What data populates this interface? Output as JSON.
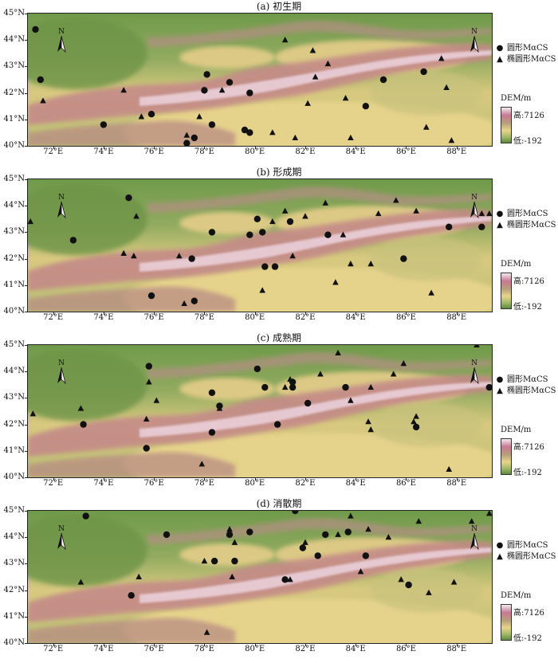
{
  "legend": {
    "circle_label": "圆形MαCS",
    "triangle_label": "椭圆形MαCS",
    "dem_title": "DEM/m",
    "dem_high": "高:7126",
    "dem_low": "低:-192",
    "north_label": "N"
  },
  "axes": {
    "x_ticks": [
      "72°E",
      "74°E",
      "76°E",
      "78°E",
      "80°E",
      "82°E",
      "84°E",
      "86°E",
      "88°E"
    ],
    "y_ticks": [
      "45°N",
      "44°N",
      "43°N",
      "42°N",
      "41°N",
      "40°N"
    ]
  },
  "map_extent": {
    "lon": [
      71.0,
      89.4
    ],
    "lat": [
      40.0,
      45.0
    ]
  },
  "colors": {
    "dem_high": "#f6e8f1",
    "dem_mid": "#c77a93",
    "dem_sand": "#e9d48a",
    "dem_low": "#5f8a3d",
    "marker": "#111111"
  },
  "panels": [
    {
      "title": "(a) 初生期",
      "circles": [
        [
          71.3,
          44.4
        ],
        [
          71.5,
          42.5
        ],
        [
          74.0,
          40.8
        ],
        [
          75.9,
          41.2
        ],
        [
          77.3,
          40.1
        ],
        [
          77.6,
          40.3
        ],
        [
          78.0,
          42.1
        ],
        [
          78.1,
          42.7
        ],
        [
          78.3,
          40.8
        ],
        [
          79.0,
          42.4
        ],
        [
          79.6,
          40.6
        ],
        [
          79.8,
          40.5
        ],
        [
          79.8,
          42.0
        ],
        [
          84.4,
          41.5
        ],
        [
          85.1,
          42.5
        ],
        [
          86.7,
          42.8
        ]
      ],
      "triangles": [
        [
          71.6,
          41.7
        ],
        [
          74.8,
          42.1
        ],
        [
          75.5,
          41.1
        ],
        [
          77.3,
          40.4
        ],
        [
          77.8,
          41.1
        ],
        [
          78.7,
          42.1
        ],
        [
          80.7,
          40.5
        ],
        [
          81.2,
          44.0
        ],
        [
          81.6,
          40.3
        ],
        [
          82.1,
          41.6
        ],
        [
          82.3,
          43.6
        ],
        [
          82.4,
          42.6
        ],
        [
          82.9,
          43.1
        ],
        [
          83.6,
          41.8
        ],
        [
          83.8,
          40.3
        ],
        [
          86.8,
          40.7
        ],
        [
          87.4,
          43.3
        ],
        [
          87.6,
          42.2
        ],
        [
          87.8,
          40.2
        ]
      ]
    },
    {
      "title": "(b) 形成期",
      "circles": [
        [
          72.8,
          42.7
        ],
        [
          75.0,
          44.3
        ],
        [
          75.9,
          40.6
        ],
        [
          77.5,
          42.0
        ],
        [
          77.6,
          40.4
        ],
        [
          78.3,
          43.0
        ],
        [
          79.8,
          42.9
        ],
        [
          80.1,
          43.5
        ],
        [
          80.3,
          43.0
        ],
        [
          80.4,
          41.7
        ],
        [
          80.8,
          41.7
        ],
        [
          81.4,
          43.4
        ],
        [
          82.9,
          42.9
        ],
        [
          85.9,
          42.0
        ],
        [
          87.7,
          43.2
        ],
        [
          89.0,
          43.2
        ]
      ],
      "triangles": [
        [
          71.1,
          43.4
        ],
        [
          74.8,
          42.2
        ],
        [
          75.2,
          42.1
        ],
        [
          75.3,
          43.6
        ],
        [
          77.0,
          42.1
        ],
        [
          77.2,
          40.3
        ],
        [
          80.3,
          40.8
        ],
        [
          80.7,
          43.4
        ],
        [
          81.2,
          43.8
        ],
        [
          81.5,
          42.1
        ],
        [
          82.0,
          43.6
        ],
        [
          82.8,
          44.1
        ],
        [
          83.2,
          41.1
        ],
        [
          83.5,
          42.9
        ],
        [
          83.8,
          41.8
        ],
        [
          84.6,
          41.8
        ],
        [
          84.9,
          43.7
        ],
        [
          85.6,
          44.2
        ],
        [
          86.4,
          43.8
        ],
        [
          87.0,
          40.7
        ],
        [
          89.0,
          43.7
        ],
        [
          89.3,
          43.7
        ]
      ]
    },
    {
      "title": "(c) 成熟期",
      "circles": [
        [
          73.2,
          42.0
        ],
        [
          75.7,
          41.1
        ],
        [
          75.8,
          44.2
        ],
        [
          78.3,
          41.7
        ],
        [
          78.3,
          43.2
        ],
        [
          78.6,
          42.7
        ],
        [
          80.1,
          44.1
        ],
        [
          80.4,
          43.4
        ],
        [
          80.9,
          42.0
        ],
        [
          81.5,
          43.4
        ],
        [
          81.5,
          43.6
        ],
        [
          82.1,
          42.8
        ],
        [
          83.6,
          43.4
        ],
        [
          86.4,
          41.9
        ],
        [
          89.3,
          43.4
        ]
      ],
      "triangles": [
        [
          71.2,
          42.4
        ],
        [
          73.1,
          42.6
        ],
        [
          75.7,
          42.2
        ],
        [
          75.8,
          43.6
        ],
        [
          76.1,
          42.9
        ],
        [
          77.9,
          40.5
        ],
        [
          78.6,
          42.6
        ],
        [
          81.2,
          43.4
        ],
        [
          81.4,
          43.7
        ],
        [
          82.6,
          43.9
        ],
        [
          83.3,
          44.7
        ],
        [
          83.8,
          42.9
        ],
        [
          84.5,
          42.1
        ],
        [
          84.6,
          43.4
        ],
        [
          84.6,
          41.8
        ],
        [
          85.5,
          43.9
        ],
        [
          85.9,
          44.3
        ],
        [
          86.3,
          42.1
        ],
        [
          86.4,
          42.3
        ],
        [
          87.7,
          40.3
        ],
        [
          88.8,
          45.0
        ]
      ]
    },
    {
      "title": "(d) 消散期",
      "circles": [
        [
          73.3,
          44.8
        ],
        [
          75.1,
          41.8
        ],
        [
          76.5,
          44.1
        ],
        [
          78.4,
          43.1
        ],
        [
          79.0,
          44.1
        ],
        [
          79.2,
          43.1
        ],
        [
          79.8,
          44.2
        ],
        [
          81.2,
          42.4
        ],
        [
          81.6,
          45.0
        ],
        [
          81.9,
          43.6
        ],
        [
          82.5,
          43.3
        ],
        [
          82.8,
          44.1
        ],
        [
          83.7,
          44.2
        ],
        [
          84.4,
          43.3
        ],
        [
          86.1,
          42.2
        ]
      ],
      "triangles": [
        [
          73.1,
          42.3
        ],
        [
          75.4,
          42.5
        ],
        [
          78.0,
          43.1
        ],
        [
          78.1,
          40.4
        ],
        [
          79.0,
          44.3
        ],
        [
          79.2,
          43.8
        ],
        [
          79.1,
          42.5
        ],
        [
          81.4,
          42.4
        ],
        [
          82.0,
          43.8
        ],
        [
          83.3,
          44.1
        ],
        [
          83.8,
          44.8
        ],
        [
          84.2,
          42.7
        ],
        [
          84.5,
          44.3
        ],
        [
          85.3,
          44.0
        ],
        [
          85.8,
          42.4
        ],
        [
          86.5,
          44.6
        ],
        [
          86.9,
          41.9
        ],
        [
          87.9,
          42.3
        ],
        [
          88.6,
          44.6
        ],
        [
          89.3,
          44.9
        ]
      ]
    }
  ]
}
